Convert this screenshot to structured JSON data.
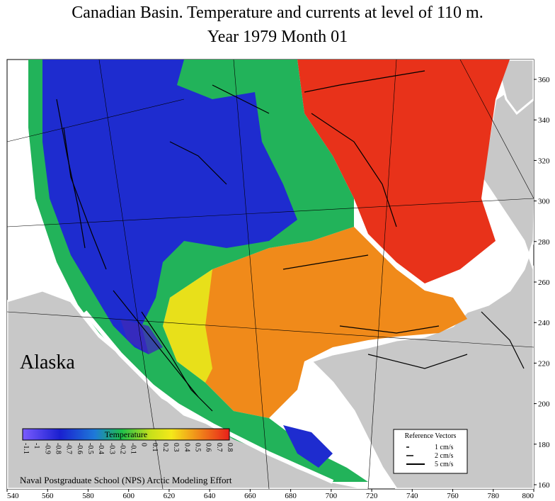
{
  "title": {
    "line1": "Canadian Basin. Temperature and currents at level of 110 m.",
    "line2": "Year 1979   Month  01"
  },
  "map": {
    "place_label": "Alaska",
    "x_ticks": [
      "540",
      "560",
      "580",
      "600",
      "620",
      "640",
      "660",
      "680",
      "700",
      "720",
      "740",
      "760",
      "780",
      "800"
    ],
    "y_ticks": [
      "360",
      "340",
      "320",
      "300",
      "280",
      "260",
      "240",
      "220",
      "200",
      "180",
      "160"
    ],
    "colors": {
      "land": "#c8c8c8",
      "cold": "#1e2ccf",
      "cool": "#22b35a",
      "mid": "#e8e01a",
      "warm": "#f08a1a",
      "hot": "#e8321a"
    }
  },
  "legend": {
    "title": "Temperature",
    "ticks": [
      "-1.1",
      "-1",
      "-0.9",
      "-0.8",
      "-0.7",
      "-0.6",
      "-0.5",
      "-0.4",
      "-0.3",
      "-0.2",
      "-0.1",
      "0",
      "0.1",
      "0.2",
      "0.3",
      "0.4",
      "0.5",
      "0.6",
      "0.7",
      "0.8"
    ]
  },
  "reference_vectors": {
    "title": "Reference Vectors",
    "items": [
      "1 cm/s",
      "2 cm/s",
      "5 cm/s"
    ]
  },
  "credit": "Naval Postgraduate School (NPS) Arctic Modeling Effort"
}
